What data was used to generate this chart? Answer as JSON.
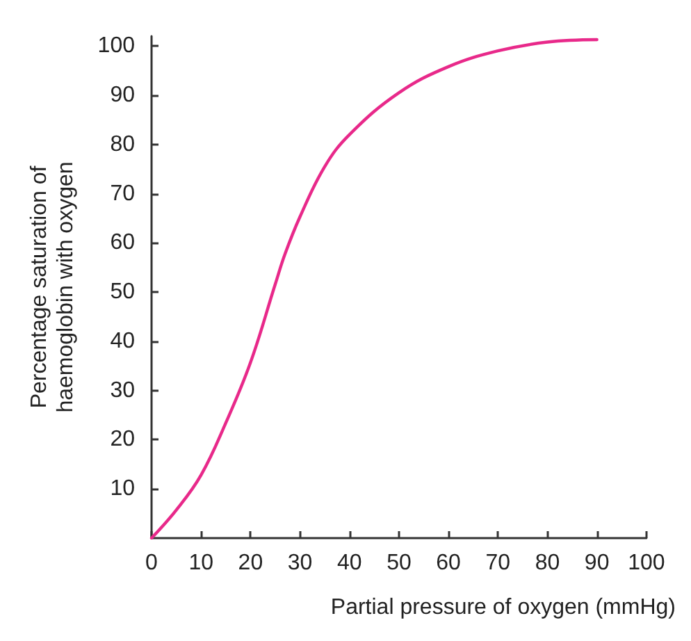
{
  "chart_data": {
    "type": "line",
    "xlabel": "Partial pressure of oxygen (mmHg)",
    "ylabel": "Percentage saturation of\nhaemoglobin with oxygen",
    "x": [
      0,
      5,
      10,
      15,
      20,
      25,
      27,
      30,
      35,
      40,
      50,
      60,
      70,
      80,
      90
    ],
    "series": [
      {
        "color": "#e8298a",
        "values": [
          0,
          5.7,
          12.8,
          23.4,
          35.7,
          51.6,
          57.8,
          65.3,
          75.5,
          82,
          90.5,
          95.8,
          99,
          100.8,
          101.3
        ]
      }
    ],
    "xlim": [
      0,
      100
    ],
    "xticks": [
      0,
      10,
      20,
      30,
      40,
      50,
      60,
      70,
      80,
      90,
      100
    ],
    "ylim": [
      0,
      102
    ],
    "yticks": [
      10,
      20,
      30,
      40,
      50,
      60,
      70,
      80,
      90,
      100
    ],
    "grid": false,
    "marker": "none",
    "line_style": "solid"
  }
}
